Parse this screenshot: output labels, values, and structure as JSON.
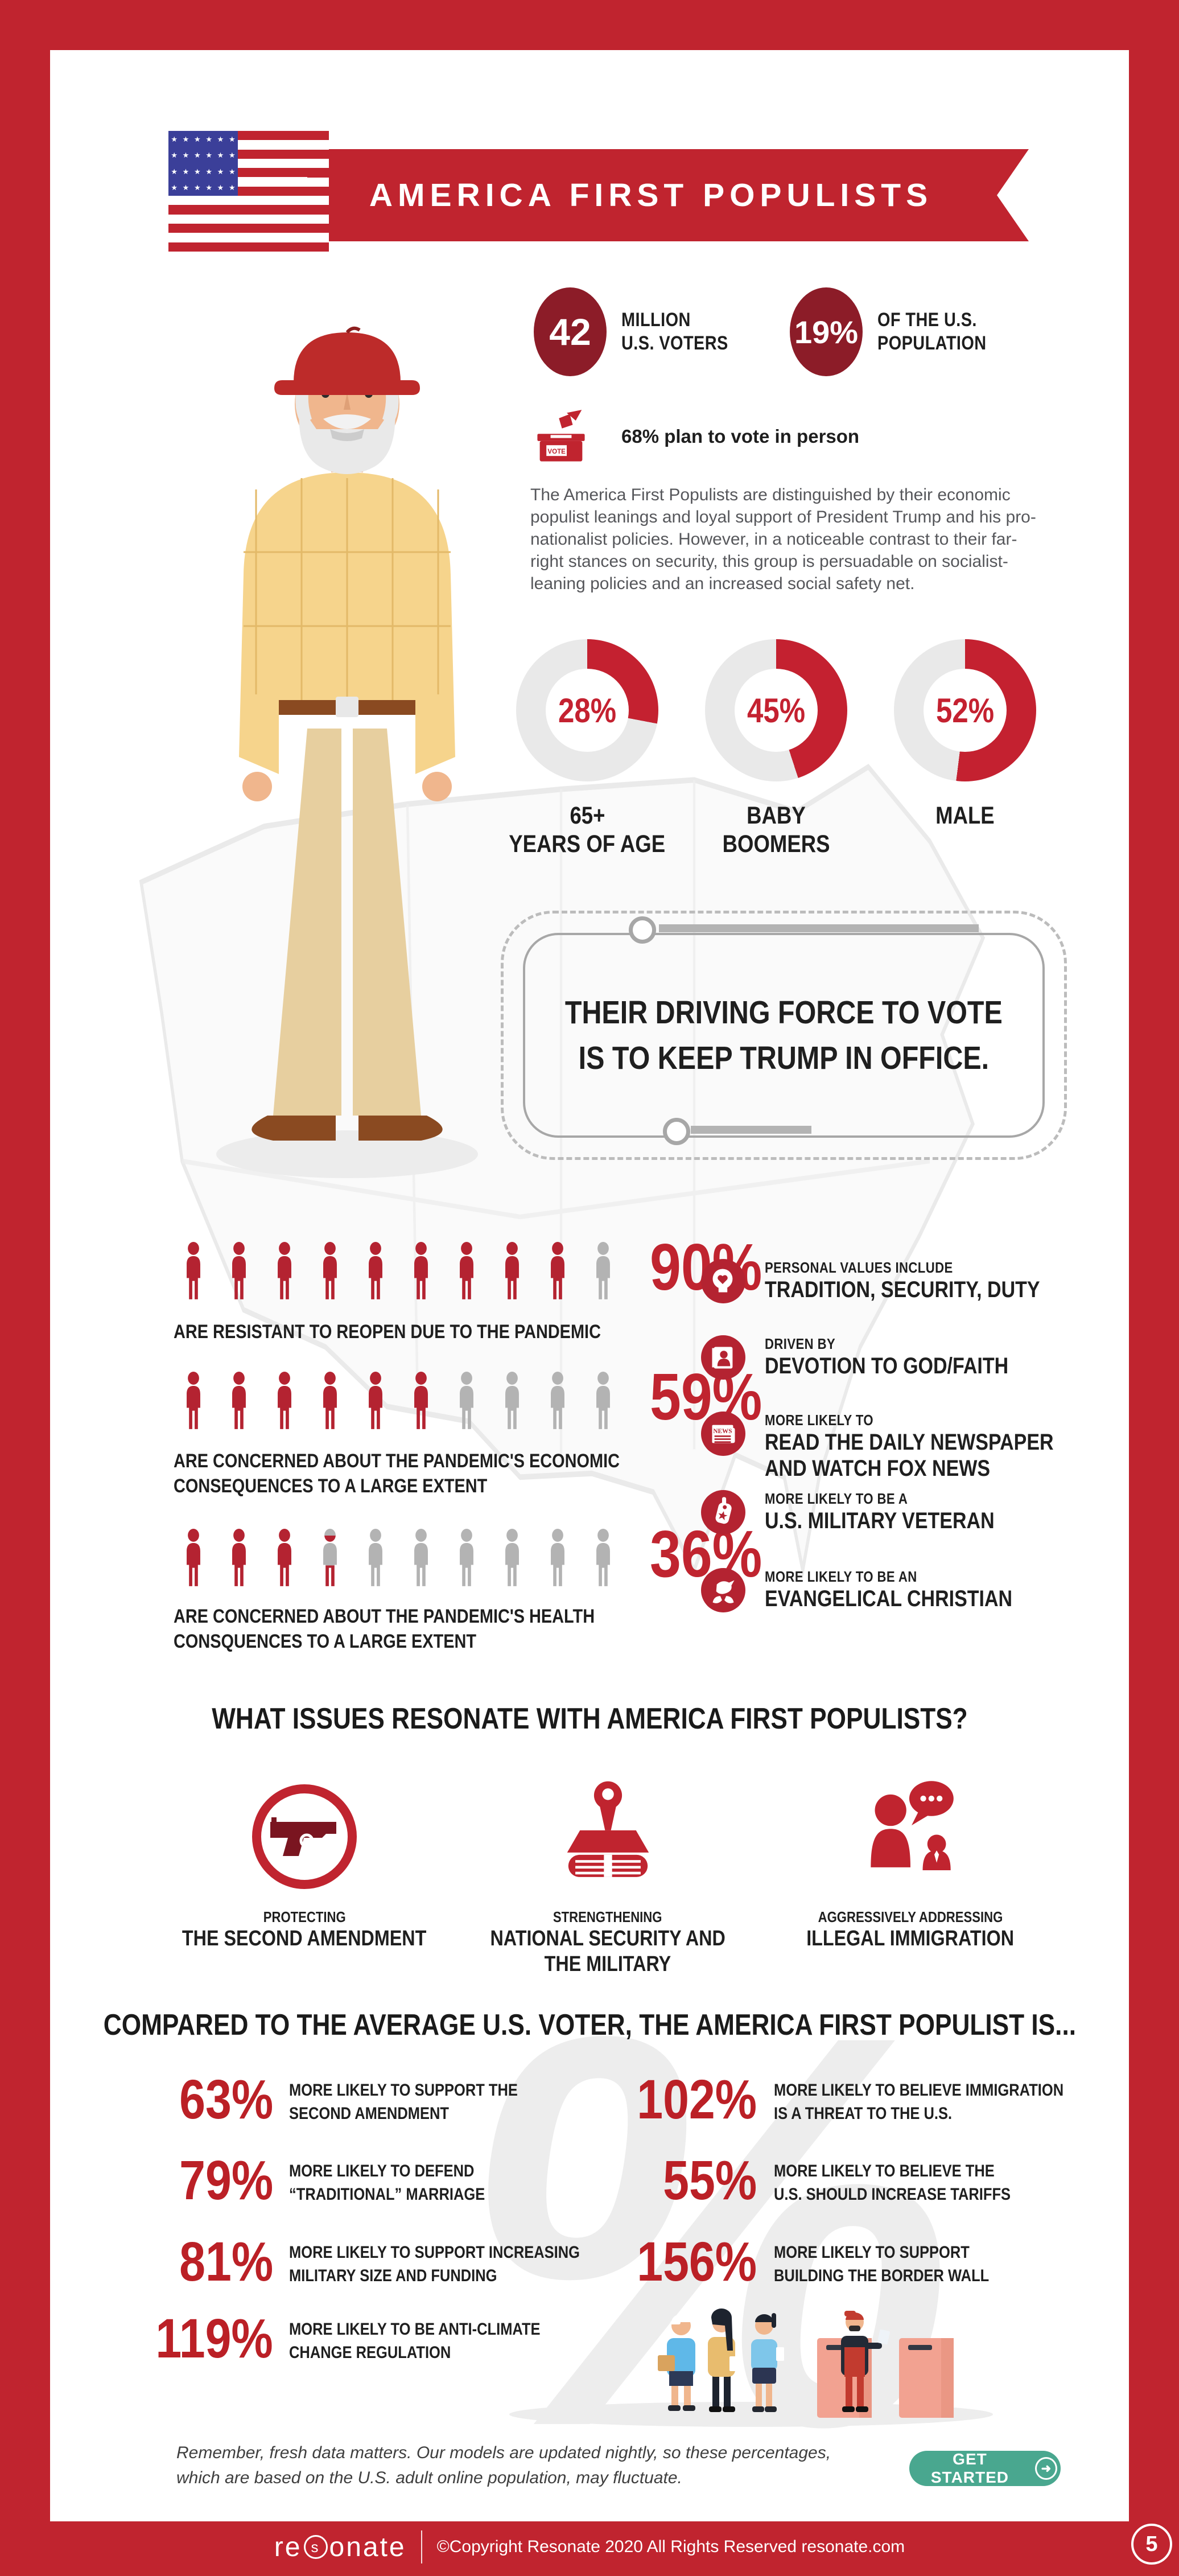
{
  "colors": {
    "frame_red": "#c0242f",
    "maroon_ball": "#8c1c28",
    "donut_red": "#c42130",
    "donut_gray": "#e9e9e9",
    "fig_red": "#b42331",
    "fig_gray": "#b3b3b3",
    "accent_red": "#bb2026",
    "teal": "#49a78f",
    "gun_dark": "#7a1520"
  },
  "header": {
    "title": "AMERICA FIRST POPULISTS"
  },
  "key_stats": [
    {
      "value": "42",
      "label_lines": [
        "MILLION",
        "U.S. VOTERS"
      ]
    },
    {
      "value": "19%",
      "label_lines": [
        "OF THE U.S.",
        "POPULATION"
      ]
    }
  ],
  "vote_note": "68% plan to vote in person",
  "vote_icon_label": "VOTE",
  "description": "The America First Populists are distinguished by their economic populist leanings and loyal support of President Trump and his pro-nationalist policies. However, in a noticeable contrast to their far-right stances on security, this group is persuadable on socialist-leaning policies and an increased social safety net.",
  "quote": {
    "lines": [
      "THEIR DRIVING FORCE TO VOTE",
      "IS TO KEEP TRUMP IN OFFICE."
    ]
  },
  "chart_data": [
    {
      "type": "pie",
      "name": "demographic_donuts",
      "unit": "%",
      "legend_position": "below",
      "series": [
        {
          "display": "28%",
          "value": 28,
          "label_lines": [
            "65+",
            "YEARS OF AGE"
          ]
        },
        {
          "display": "45%",
          "value": 45,
          "label_lines": [
            "BABY",
            "BOOMERS"
          ]
        },
        {
          "display": "52%",
          "value": 52,
          "label_lines": [
            "MALE",
            ""
          ]
        }
      ]
    },
    {
      "type": "bar",
      "name": "pandemic_attitudes_pictogram",
      "unit": "%",
      "icons_total": 10,
      "series": [
        {
          "display": "90%",
          "value": 90,
          "red_figures": 9,
          "partial_figure": 0,
          "caption_lines": [
            "ARE RESISTANT TO REOPEN DUE TO THE PANDEMIC",
            ""
          ]
        },
        {
          "display": "59%",
          "value": 59,
          "red_figures": 6,
          "partial_figure": 0,
          "caption_lines": [
            "ARE CONCERNED ABOUT THE PANDEMIC'S ECONOMIC",
            "CONSEQUENCES TO A LARGE EXTENT"
          ]
        },
        {
          "display": "36%",
          "value": 36,
          "red_figures": 3,
          "partial_figure": 0.55,
          "caption_lines": [
            "ARE CONCERNED ABOUT THE PANDEMIC'S HEALTH",
            "CONSQUENCES TO A LARGE EXTENT"
          ]
        }
      ]
    },
    {
      "type": "bar",
      "name": "vs_average_voter",
      "title": "COMPARED TO THE AVERAGE U.S. VOTER, THE AMERICA FIRST POPULIST IS...",
      "unit": "% more likely",
      "left": [
        {
          "display": "63%",
          "value": 63,
          "label_lines": [
            "MORE LIKELY TO SUPPORT THE",
            "SECOND AMENDMENT"
          ]
        },
        {
          "display": "79%",
          "value": 79,
          "label_lines": [
            "MORE LIKELY TO DEFEND",
            "“TRADITIONAL” MARRIAGE"
          ]
        },
        {
          "display": "81%",
          "value": 81,
          "label_lines": [
            "MORE LIKELY TO SUPPORT INCREASING",
            "MILITARY SIZE AND FUNDING"
          ]
        },
        {
          "display": "119%",
          "value": 119,
          "label_lines": [
            "MORE LIKELY TO BE ANTI-CLIMATE",
            "CHANGE REGULATION"
          ]
        }
      ],
      "right": [
        {
          "display": "102%",
          "value": 102,
          "label_lines": [
            "MORE LIKELY TO BELIEVE IMMIGRATION",
            "IS A THREAT TO THE U.S."
          ]
        },
        {
          "display": "55%",
          "value": 55,
          "label_lines": [
            "MORE LIKELY TO BELIEVE THE",
            "U.S. SHOULD INCREASE TARIFFS"
          ]
        },
        {
          "display": "156%",
          "value": 156,
          "label_lines": [
            "MORE LIKELY TO SUPPORT",
            "BUILDING THE BORDER WALL"
          ]
        }
      ]
    }
  ],
  "traits": [
    {
      "icon": "head-heart-icon",
      "kicker": "PERSONAL VALUES INCLUDE",
      "title_lines": [
        "TRADITION, SECURITY, DUTY",
        ""
      ]
    },
    {
      "icon": "faith-book-icon",
      "kicker": "DRIVEN BY",
      "title_lines": [
        "DEVOTION TO GOD/FAITH",
        ""
      ]
    },
    {
      "icon": "newspaper-icon",
      "kicker": "MORE LIKELY TO",
      "title_lines": [
        "READ THE DAILY NEWSPAPER",
        "AND WATCH FOX NEWS"
      ]
    },
    {
      "icon": "dog-tag-icon",
      "kicker": "MORE LIKELY TO BE A",
      "title_lines": [
        "U.S. MILITARY VETERAN",
        ""
      ]
    },
    {
      "icon": "dove-hands-icon",
      "kicker": "MORE LIKELY TO BE AN",
      "title_lines": [
        "EVANGELICAL CHRISTIAN",
        ""
      ]
    }
  ],
  "issues": {
    "title": "WHAT ISSUES RESONATE WITH AMERICA FIRST POPULISTS?",
    "items": [
      {
        "icon": "handgun-icon",
        "kicker": "PROTECTING",
        "title_lines": [
          "THE SECOND AMENDMENT",
          ""
        ]
      },
      {
        "icon": "tank-icon",
        "kicker": "STRENGTHENING",
        "title_lines": [
          "NATIONAL SECURITY AND",
          "THE MILITARY"
        ]
      },
      {
        "icon": "immigration-talk-icon",
        "kicker": "AGGRESSIVELY ADDRESSING",
        "title_lines": [
          "ILLEGAL IMMIGRATION",
          ""
        ]
      }
    ]
  },
  "footer": {
    "note_lines": [
      "Remember, fresh data matters. Our models are updated nightly, so these percentages,",
      "which are based on the U.S. adult online population, may fluctuate."
    ],
    "cta_label": "GET STARTED"
  },
  "bottom_bar": {
    "logo_parts": {
      "pre": "re",
      "s": "s",
      "post": "onate"
    },
    "copyright": "©Copyright Resonate 2020 All Rights Reserved resonate.com"
  },
  "page": {
    "number": "5"
  }
}
